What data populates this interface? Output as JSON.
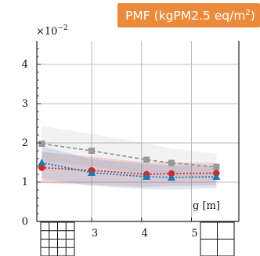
{
  "chart_data": {
    "type": "line",
    "title": "PMF (kgPM2.5 eq/m",
    "title_superscript": "2",
    "title_close": ")",
    "title_background": "#ec8a3c",
    "scale_label": "×10",
    "scale_exponent": "−2",
    "xlabel": "g [m]",
    "ylabel": "",
    "xlim": [
      1.9,
      5.95
    ],
    "ylim": [
      0,
      4.6
    ],
    "x_ticks": [
      3,
      4,
      5
    ],
    "x_tick_labels": [
      "3",
      "4",
      "5"
    ],
    "y_ticks": [
      0,
      1,
      2,
      3,
      4
    ],
    "y_tick_labels": [
      "0",
      "1",
      "2",
      "3",
      "4"
    ],
    "grid": true,
    "x": [
      2.0,
      3.0,
      4.1,
      4.6,
      5.5
    ],
    "series": [
      {
        "color": "#999999",
        "marker": "square",
        "line_style": "dashed",
        "values": [
          1.98,
          1.8,
          1.57,
          1.49,
          1.39
        ],
        "band_upper": [
          2.43,
          2.23,
          1.99,
          1.86,
          1.72
        ],
        "band_lower": [
          1.55,
          1.4,
          1.2,
          1.13,
          1.06
        ]
      },
      {
        "color": "#d62728",
        "marker": "circle",
        "line_style": "dotted",
        "values": [
          1.37,
          1.3,
          1.2,
          1.22,
          1.23
        ],
        "band_upper": [
          1.77,
          1.65,
          1.5,
          1.51,
          1.49
        ],
        "band_lower": [
          0.98,
          0.93,
          0.88,
          0.9,
          0.92
        ]
      },
      {
        "color": "#1f77b4",
        "marker": "triangle",
        "line_style": "dotted",
        "values": [
          1.5,
          1.24,
          1.14,
          1.12,
          1.14
        ],
        "band_upper": [
          1.92,
          1.59,
          1.46,
          1.42,
          1.41
        ],
        "band_lower": [
          1.08,
          0.91,
          0.82,
          0.81,
          0.85
        ]
      }
    ]
  },
  "colors": {
    "grid": "#bbbbbb",
    "axis": "#222222"
  },
  "icons": {
    "overlay_grid_left": "grid-overlay-icon",
    "overlay_grid_right": "grid-overlay-icon"
  }
}
